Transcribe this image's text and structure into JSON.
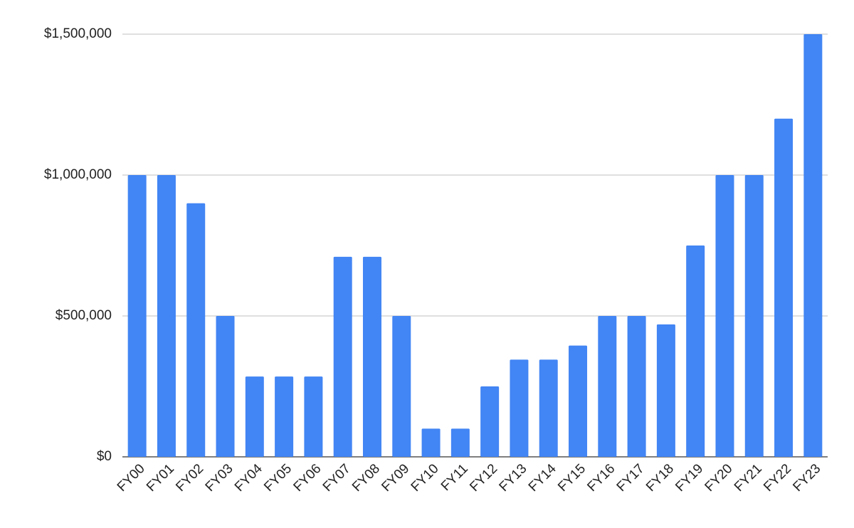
{
  "chart_data": {
    "type": "bar",
    "categories": [
      "FY00",
      "FY01",
      "FY02",
      "FY03",
      "FY04",
      "FY05",
      "FY06",
      "FY07",
      "FY08",
      "FY09",
      "FY10",
      "FY11",
      "FY12",
      "FY13",
      "FY14",
      "FY15",
      "FY16",
      "FY17",
      "FY18",
      "FY19",
      "FY20",
      "FY21",
      "FY22",
      "FY23"
    ],
    "values": [
      1000000,
      1000000,
      900000,
      500000,
      285000,
      285000,
      285000,
      710000,
      710000,
      500000,
      100000,
      100000,
      250000,
      345000,
      345000,
      395000,
      500000,
      500000,
      470000,
      750000,
      1000000,
      1000000,
      1200000,
      1500000
    ],
    "color": "#4285f4",
    "ylim": [
      0,
      1500000
    ],
    "yticks": [
      {
        "value": 0,
        "label": "$0"
      },
      {
        "value": 500000,
        "label": "$500,000"
      },
      {
        "value": 1000000,
        "label": "$1,000,000"
      },
      {
        "value": 1500000,
        "label": "$1,500,000"
      }
    ],
    "grid": true
  }
}
